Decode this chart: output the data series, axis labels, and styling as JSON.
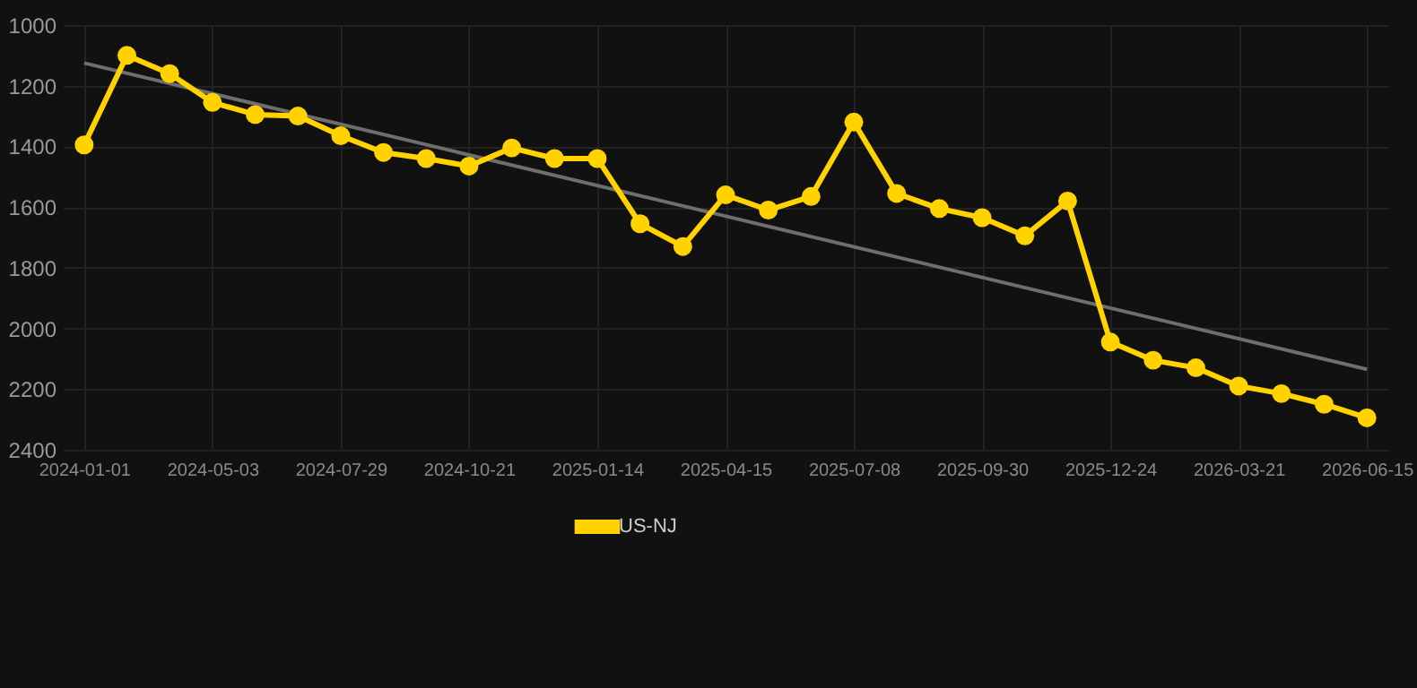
{
  "chart_data": {
    "type": "line",
    "categories": [
      "2024-01-01",
      null,
      null,
      "2024-05-03",
      null,
      null,
      "2024-07-29",
      null,
      null,
      "2024-10-21",
      null,
      null,
      "2025-01-14",
      null,
      null,
      "2025-04-15",
      null,
      null,
      "2025-07-08",
      null,
      null,
      "2025-09-30",
      null,
      null,
      "2025-12-24",
      null,
      null,
      "2026-03-21",
      null,
      null,
      "2026-06-15"
    ],
    "series": [
      {
        "name": "US-NJ",
        "color": "#ffd200",
        "values": [
          1395,
          1100,
          1160,
          1255,
          1295,
          1300,
          1365,
          1420,
          1440,
          1465,
          1405,
          1440,
          1440,
          1655,
          1730,
          1560,
          1610,
          1565,
          1320,
          1555,
          1605,
          1635,
          1695,
          1580,
          2045,
          2105,
          2130,
          2190,
          2215,
          2250,
          2295
        ],
        "marker": "circle"
      },
      {
        "type": "line",
        "color": "#6e6e6e",
        "values": [
          1125,
          null,
          null,
          null,
          null,
          null,
          null,
          null,
          null,
          null,
          null,
          null,
          null,
          null,
          null,
          null,
          null,
          null,
          null,
          null,
          null,
          null,
          null,
          null,
          null,
          null,
          null,
          null,
          null,
          null,
          2135
        ],
        "marker": "none"
      }
    ],
    "ylim": [
      2400,
      1000
    ],
    "yticks": [
      1000,
      1200,
      1400,
      1600,
      1800,
      2000,
      2200,
      2400
    ],
    "grid": true,
    "legend": "bottom",
    "line_style": "solid"
  }
}
